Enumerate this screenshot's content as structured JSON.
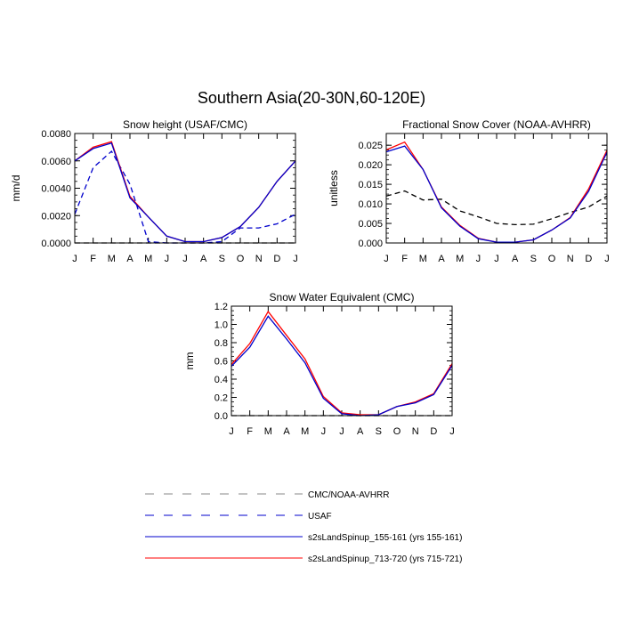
{
  "figure_title": "Southern Asia(20-30N,60-120E)",
  "colors": {
    "red": "#ff0000",
    "blue": "#0000cc",
    "black": "#000000",
    "gray": "#888888"
  },
  "chart_data": [
    {
      "type": "line",
      "title": "Snow height (USAF/CMC)",
      "ylabel": "mm/d",
      "x": [
        "J",
        "F",
        "M",
        "A",
        "M",
        "J",
        "J",
        "A",
        "S",
        "O",
        "N",
        "D",
        "J"
      ],
      "ylim": [
        0,
        0.008
      ],
      "yticks": [
        "0.0000",
        "0.0020",
        "0.0040",
        "0.0060",
        "0.0080"
      ],
      "series": [
        {
          "name": "CMC/NOAA-AVHRR",
          "color": "#000000",
          "dash": true,
          "values": [
            0,
            0,
            0,
            0,
            0,
            0,
            0,
            0,
            0,
            0,
            0,
            0,
            0
          ]
        },
        {
          "name": "USAF",
          "color": "#0000cc",
          "dash": true,
          "values": [
            0.0021,
            0.0055,
            0.0067,
            0.0043,
            0.0001,
            0,
            0,
            0,
            0.0001,
            0.0011,
            0.0011,
            0.0014,
            0.0021
          ]
        },
        {
          "name": "s2sLandSpinup_713-720 (yrs 715-721)",
          "color": "#ff0000",
          "dash": false,
          "values": [
            0.006,
            0.007,
            0.0074,
            0.0034,
            0.0019,
            0.0005,
            0.0001,
            0.0001,
            0.0004,
            0.0012,
            0.0026,
            0.0045,
            0.006
          ]
        },
        {
          "name": "s2sLandSpinup_155-161 (yrs 155-161)",
          "color": "#0000cc",
          "dash": false,
          "values": [
            0.006,
            0.0069,
            0.0073,
            0.0033,
            0.0019,
            0.0005,
            0.0001,
            0.0001,
            0.0004,
            0.0012,
            0.0026,
            0.0045,
            0.006
          ]
        }
      ]
    },
    {
      "type": "line",
      "title": "Fractional Snow Cover (NOAA-AVHRR)",
      "ylabel": "unitless",
      "x": [
        "J",
        "F",
        "M",
        "A",
        "M",
        "J",
        "J",
        "A",
        "S",
        "O",
        "N",
        "D",
        "J"
      ],
      "ylim": [
        0,
        0.028
      ],
      "yticks": [
        "0.000",
        "0.005",
        "0.010",
        "0.015",
        "0.020",
        "0.025"
      ],
      "series": [
        {
          "name": "CMC/NOAA-AVHRR",
          "color": "#000000",
          "dash": true,
          "values": [
            0.012,
            0.0133,
            0.011,
            0.0112,
            0.0082,
            0.0067,
            0.005,
            0.0047,
            0.0048,
            0.0062,
            0.0078,
            0.0092,
            0.012
          ]
        },
        {
          "name": "s2sLandSpinup_713-720 (yrs 715-721)",
          "color": "#ff0000",
          "dash": false,
          "values": [
            0.0238,
            0.0258,
            0.0188,
            0.0092,
            0.0045,
            0.0012,
            0.0002,
            0.0002,
            0.0008,
            0.0033,
            0.0065,
            0.0138,
            0.0237
          ]
        },
        {
          "name": "s2sLandSpinup_155-161 (yrs 155-161)",
          "color": "#0000cc",
          "dash": false,
          "values": [
            0.0233,
            0.0248,
            0.0188,
            0.009,
            0.0043,
            0.0011,
            0.0002,
            0.0002,
            0.0008,
            0.0033,
            0.0064,
            0.0132,
            0.0232
          ]
        }
      ]
    },
    {
      "type": "line",
      "title": "Snow Water Equivalent (CMC)",
      "ylabel": "mm",
      "x": [
        "J",
        "F",
        "M",
        "A",
        "M",
        "J",
        "J",
        "A",
        "S",
        "O",
        "N",
        "D",
        "J"
      ],
      "ylim": [
        0,
        1.2
      ],
      "yticks": [
        "0.0",
        "0.2",
        "0.4",
        "0.6",
        "0.8",
        "1.0",
        "1.2"
      ],
      "series": [
        {
          "name": "CMC/NOAA-AVHRR",
          "color": "#000000",
          "dash": true,
          "values": [
            0,
            0,
            0,
            0,
            0,
            0,
            0,
            0,
            0,
            0,
            0,
            0,
            0
          ]
        },
        {
          "name": "s2sLandSpinup_713-720 (yrs 715-721)",
          "color": "#ff0000",
          "dash": false,
          "values": [
            0.56,
            0.79,
            1.14,
            0.88,
            0.62,
            0.21,
            0.03,
            0.01,
            0.01,
            0.1,
            0.15,
            0.24,
            0.57
          ]
        },
        {
          "name": "s2sLandSpinup_155-161 (yrs 155-161)",
          "color": "#0000cc",
          "dash": false,
          "values": [
            0.54,
            0.75,
            1.09,
            0.84,
            0.58,
            0.19,
            0.02,
            0.0,
            0.01,
            0.1,
            0.14,
            0.23,
            0.55
          ]
        }
      ]
    }
  ],
  "legend": [
    {
      "label": "CMC/NOAA-AVHRR",
      "color": "#888888",
      "dash": true
    },
    {
      "label": "USAF",
      "color": "#0000cc",
      "dash": true
    },
    {
      "label": "s2sLandSpinup_155-161 (yrs 155-161)",
      "color": "#0000cc",
      "dash": false
    },
    {
      "label": "s2sLandSpinup_713-720 (yrs 715-721)",
      "color": "#ff0000",
      "dash": false
    }
  ]
}
